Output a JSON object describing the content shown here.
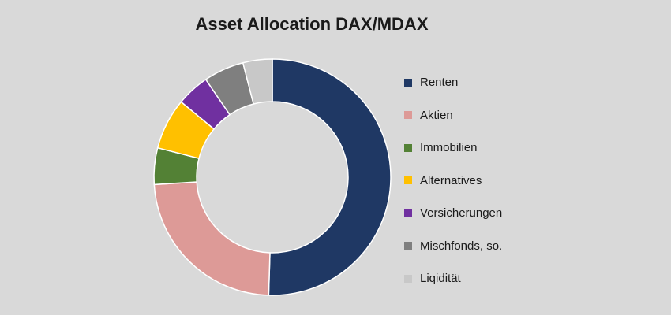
{
  "chart_data": {
    "type": "pie",
    "title": "Asset Allocation DAX/MDAX",
    "legend_position": "right",
    "series": [
      {
        "categories": [
          "Renten",
          "Aktien",
          "Immobilien",
          "Alternatives",
          "Versicherungen",
          "Mischfonds, so.",
          "Liqidität"
        ],
        "values": [
          50.5,
          23.5,
          5.0,
          7.0,
          4.5,
          5.5,
          4.0
        ],
        "unit": "%",
        "colors": [
          "#1f3864",
          "#dd9a97",
          "#538135",
          "#ffc000",
          "#7030a0",
          "#7f7f7f",
          "#c8c8c8"
        ]
      }
    ]
  }
}
